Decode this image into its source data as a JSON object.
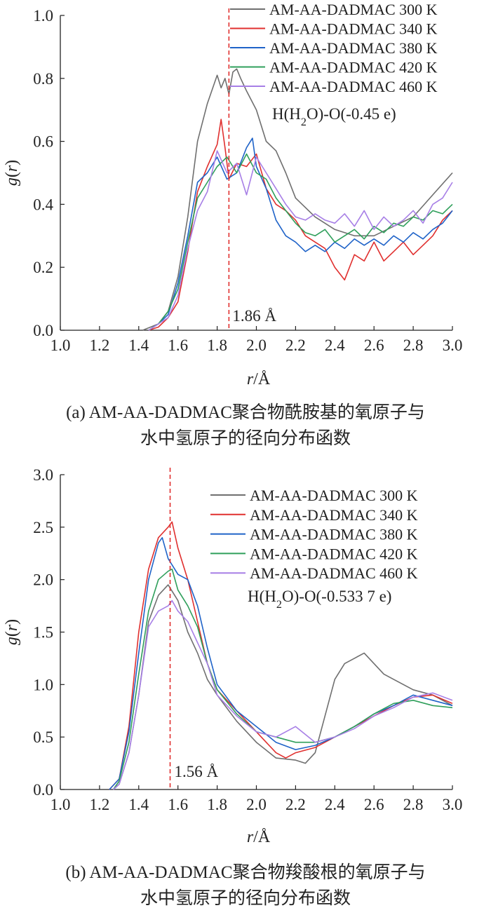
{
  "captions": {
    "a_line1": "(a) AM-AA-DADMAC聚合物酰胺基的氧原子与",
    "a_line2": "水中氢原子的径向分布函数",
    "b_line1": "(b) AM-AA-DADMAC聚合物羧酸根的氧原子与",
    "b_line2": "水中氢原子的径向分布函数"
  },
  "colors": {
    "300 K": "#6f6f6f",
    "340 K": "#e0302f",
    "380 K": "#1f63c8",
    "420 K": "#2f9f5b",
    "460 K": "#a77fe6",
    "marker": "#e0302f",
    "axis": "#222222"
  },
  "chart_data": [
    {
      "type": "line",
      "xlabel": "r/Å",
      "ylabel": "g(r)",
      "xlim": [
        1.0,
        3.0
      ],
      "ylim": [
        0.0,
        1.0
      ],
      "xticks": [
        1.0,
        1.2,
        1.4,
        1.6,
        1.8,
        2.0,
        2.2,
        2.4,
        2.6,
        2.8,
        3.0
      ],
      "yticks": [
        0.0,
        0.2,
        0.4,
        0.6,
        0.8,
        1.0
      ],
      "xtick_labels": [
        "1.0",
        "1.2",
        "1.4",
        "1.6",
        "1.8",
        "2.0",
        "2.2",
        "2.4",
        "2.6",
        "2.8",
        "3.0"
      ],
      "ytick_labels": [
        "0.0",
        "0.2",
        "0.4",
        "0.6",
        "0.8",
        "1.0"
      ],
      "annotation": "H(H2O)-O(-0.45 e)",
      "marker_x": 1.86,
      "marker_label": "1.86 Å",
      "legend_position": "top-right",
      "series": [
        {
          "name": "AM-AA-DADMAC 300 K",
          "x": [
            1.42,
            1.5,
            1.55,
            1.6,
            1.65,
            1.7,
            1.75,
            1.8,
            1.82,
            1.84,
            1.86,
            1.88,
            1.9,
            1.92,
            1.95,
            2.0,
            2.05,
            2.1,
            2.15,
            2.2,
            2.3,
            2.4,
            2.5,
            2.6,
            2.7,
            2.8,
            2.9,
            3.0
          ],
          "y": [
            0.0,
            0.02,
            0.06,
            0.17,
            0.36,
            0.6,
            0.72,
            0.81,
            0.77,
            0.8,
            0.75,
            0.82,
            0.83,
            0.8,
            0.76,
            0.7,
            0.6,
            0.57,
            0.5,
            0.42,
            0.36,
            0.32,
            0.3,
            0.3,
            0.33,
            0.36,
            0.43,
            0.5
          ]
        },
        {
          "name": "AM-AA-DADMAC 340 K",
          "x": [
            1.45,
            1.5,
            1.55,
            1.6,
            1.65,
            1.7,
            1.75,
            1.8,
            1.82,
            1.84,
            1.86,
            1.9,
            1.95,
            2.0,
            2.05,
            2.1,
            2.15,
            2.2,
            2.25,
            2.3,
            2.35,
            2.4,
            2.45,
            2.5,
            2.55,
            2.6,
            2.65,
            2.7,
            2.75,
            2.8,
            2.85,
            2.9,
            2.95,
            3.0
          ],
          "y": [
            0.0,
            0.01,
            0.04,
            0.09,
            0.25,
            0.44,
            0.52,
            0.59,
            0.67,
            0.58,
            0.48,
            0.53,
            0.52,
            0.56,
            0.45,
            0.4,
            0.38,
            0.35,
            0.3,
            0.28,
            0.26,
            0.2,
            0.16,
            0.24,
            0.22,
            0.28,
            0.22,
            0.25,
            0.28,
            0.24,
            0.27,
            0.3,
            0.35,
            0.38
          ]
        },
        {
          "name": "AM-AA-DADMAC 380 K",
          "x": [
            1.45,
            1.5,
            1.55,
            1.6,
            1.65,
            1.7,
            1.75,
            1.8,
            1.85,
            1.9,
            1.95,
            1.98,
            2.0,
            2.05,
            2.1,
            2.15,
            2.2,
            2.25,
            2.3,
            2.35,
            2.4,
            2.45,
            2.5,
            2.55,
            2.6,
            2.65,
            2.7,
            2.75,
            2.8,
            2.85,
            2.9,
            2.95,
            3.0
          ],
          "y": [
            0.0,
            0.02,
            0.05,
            0.15,
            0.3,
            0.47,
            0.5,
            0.55,
            0.48,
            0.5,
            0.58,
            0.61,
            0.52,
            0.45,
            0.35,
            0.3,
            0.28,
            0.25,
            0.27,
            0.25,
            0.28,
            0.26,
            0.29,
            0.27,
            0.29,
            0.27,
            0.3,
            0.28,
            0.31,
            0.29,
            0.32,
            0.34,
            0.38
          ]
        },
        {
          "name": "AM-AA-DADMAC 420 K",
          "x": [
            1.45,
            1.5,
            1.55,
            1.6,
            1.65,
            1.7,
            1.75,
            1.8,
            1.85,
            1.9,
            1.95,
            2.0,
            2.05,
            2.1,
            2.15,
            2.2,
            2.25,
            2.3,
            2.35,
            2.4,
            2.45,
            2.5,
            2.55,
            2.6,
            2.65,
            2.7,
            2.75,
            2.8,
            2.85,
            2.9,
            2.95,
            3.0
          ],
          "y": [
            0.0,
            0.02,
            0.06,
            0.13,
            0.28,
            0.42,
            0.47,
            0.52,
            0.55,
            0.5,
            0.56,
            0.5,
            0.48,
            0.42,
            0.38,
            0.34,
            0.31,
            0.3,
            0.32,
            0.28,
            0.3,
            0.32,
            0.29,
            0.33,
            0.31,
            0.34,
            0.33,
            0.36,
            0.35,
            0.38,
            0.37,
            0.4
          ]
        },
        {
          "name": "AM-AA-DADMAC 460 K",
          "x": [
            1.45,
            1.5,
            1.55,
            1.6,
            1.65,
            1.7,
            1.75,
            1.8,
            1.85,
            1.9,
            1.95,
            2.0,
            2.05,
            2.1,
            2.15,
            2.2,
            2.25,
            2.3,
            2.35,
            2.4,
            2.45,
            2.5,
            2.55,
            2.6,
            2.65,
            2.7,
            2.75,
            2.8,
            2.85,
            2.9,
            2.95,
            3.0
          ],
          "y": [
            0.0,
            0.02,
            0.04,
            0.11,
            0.26,
            0.38,
            0.44,
            0.57,
            0.5,
            0.53,
            0.43,
            0.55,
            0.5,
            0.45,
            0.4,
            0.36,
            0.35,
            0.37,
            0.35,
            0.34,
            0.37,
            0.33,
            0.38,
            0.32,
            0.36,
            0.33,
            0.35,
            0.38,
            0.34,
            0.4,
            0.42,
            0.47
          ]
        }
      ]
    },
    {
      "type": "line",
      "xlabel": "r/Å",
      "ylabel": "g(r)",
      "xlim": [
        1.0,
        3.0
      ],
      "ylim": [
        0.0,
        3.0
      ],
      "xticks": [
        1.0,
        1.2,
        1.4,
        1.6,
        1.8,
        2.0,
        2.2,
        2.4,
        2.6,
        2.8,
        3.0
      ],
      "yticks": [
        0.0,
        0.5,
        1.0,
        1.5,
        2.0,
        2.5,
        3.0
      ],
      "xtick_labels": [
        "1.0",
        "1.2",
        "1.4",
        "1.6",
        "1.8",
        "2.0",
        "2.2",
        "2.4",
        "2.6",
        "2.8",
        "3.0"
      ],
      "ytick_labels": [
        "0.0",
        "0.5",
        "1.0",
        "1.5",
        "2.0",
        "2.5",
        "3.0"
      ],
      "annotation": "H(H2O)-O(-0.533 7 e)",
      "marker_x": 1.56,
      "marker_label": "1.56 Å",
      "legend_position": "top-right",
      "series": [
        {
          "name": "AM-AA-DADMAC 300 K",
          "x": [
            1.27,
            1.3,
            1.35,
            1.4,
            1.45,
            1.5,
            1.55,
            1.6,
            1.65,
            1.7,
            1.75,
            1.8,
            1.9,
            2.0,
            2.1,
            2.2,
            2.25,
            2.3,
            2.35,
            2.4,
            2.45,
            2.5,
            2.55,
            2.6,
            2.65,
            2.7,
            2.8,
            2.9,
            3.0
          ],
          "y": [
            0.0,
            0.05,
            0.35,
            0.9,
            1.6,
            1.85,
            1.95,
            1.8,
            1.5,
            1.3,
            1.05,
            0.9,
            0.65,
            0.45,
            0.3,
            0.28,
            0.25,
            0.35,
            0.7,
            1.05,
            1.2,
            1.25,
            1.3,
            1.2,
            1.1,
            1.05,
            0.95,
            0.9,
            0.8
          ]
        },
        {
          "name": "AM-AA-DADMAC 340 K",
          "x": [
            1.25,
            1.3,
            1.35,
            1.4,
            1.45,
            1.5,
            1.55,
            1.57,
            1.6,
            1.65,
            1.7,
            1.75,
            1.8,
            1.9,
            2.0,
            2.1,
            2.15,
            2.2,
            2.3,
            2.4,
            2.5,
            2.6,
            2.7,
            2.8,
            2.9,
            3.0
          ],
          "y": [
            0.0,
            0.1,
            0.6,
            1.5,
            2.1,
            2.4,
            2.5,
            2.55,
            2.3,
            2.0,
            1.6,
            1.2,
            0.95,
            0.75,
            0.55,
            0.35,
            0.3,
            0.35,
            0.4,
            0.5,
            0.6,
            0.7,
            0.8,
            0.88,
            0.9,
            0.82
          ]
        },
        {
          "name": "AM-AA-DADMAC 380 K",
          "x": [
            1.25,
            1.3,
            1.35,
            1.4,
            1.45,
            1.5,
            1.52,
            1.55,
            1.6,
            1.65,
            1.7,
            1.75,
            1.8,
            1.9,
            2.0,
            2.1,
            2.2,
            2.3,
            2.4,
            2.5,
            2.6,
            2.7,
            2.8,
            2.9,
            3.0
          ],
          "y": [
            0.0,
            0.1,
            0.55,
            1.3,
            2.0,
            2.35,
            2.4,
            2.2,
            2.05,
            2.0,
            1.75,
            1.35,
            1.0,
            0.75,
            0.6,
            0.45,
            0.38,
            0.42,
            0.5,
            0.6,
            0.72,
            0.8,
            0.9,
            0.85,
            0.8
          ]
        },
        {
          "name": "AM-AA-DADMAC 420 K",
          "x": [
            1.27,
            1.3,
            1.35,
            1.4,
            1.45,
            1.5,
            1.55,
            1.57,
            1.6,
            1.65,
            1.7,
            1.75,
            1.8,
            1.9,
            2.0,
            2.1,
            2.2,
            2.3,
            2.4,
            2.5,
            2.6,
            2.7,
            2.8,
            2.9,
            3.0
          ],
          "y": [
            0.0,
            0.08,
            0.45,
            1.1,
            1.7,
            2.0,
            2.08,
            2.1,
            1.9,
            1.75,
            1.55,
            1.2,
            0.95,
            0.72,
            0.55,
            0.5,
            0.45,
            0.45,
            0.5,
            0.6,
            0.72,
            0.82,
            0.85,
            0.8,
            0.78
          ]
        },
        {
          "name": "AM-AA-DADMAC 460 K",
          "x": [
            1.27,
            1.3,
            1.35,
            1.4,
            1.45,
            1.5,
            1.55,
            1.57,
            1.6,
            1.65,
            1.7,
            1.75,
            1.8,
            1.9,
            2.0,
            2.1,
            2.2,
            2.3,
            2.4,
            2.5,
            2.6,
            2.7,
            2.8,
            2.9,
            3.0
          ],
          "y": [
            0.0,
            0.05,
            0.35,
            0.9,
            1.55,
            1.7,
            1.75,
            1.8,
            1.7,
            1.6,
            1.4,
            1.2,
            0.9,
            0.7,
            0.55,
            0.5,
            0.6,
            0.45,
            0.5,
            0.58,
            0.7,
            0.78,
            0.88,
            0.92,
            0.85
          ]
        }
      ]
    }
  ]
}
